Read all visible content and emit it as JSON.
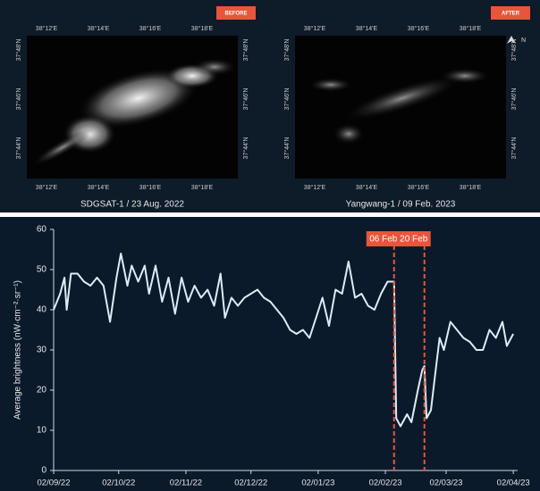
{
  "images": [
    {
      "badge": "BEFORE",
      "caption": "SDGSAT-1 / 23 Aug. 2022"
    },
    {
      "badge": "AFTER",
      "caption": "Yangwang-1 / 09 Feb. 2023"
    }
  ],
  "lon_labels": [
    "38°12'E",
    "38°14'E",
    "38°16'E",
    "38°18'E"
  ],
  "lat_labels": [
    "37°48'N",
    "37°46'N",
    "37°44'N"
  ],
  "north": "N",
  "chart_data": {
    "type": "line",
    "ylabel": "Average brightness  (nW·cm⁻²·sr⁻¹)",
    "ylim": [
      0,
      60
    ],
    "yticks": [
      0,
      10,
      20,
      30,
      40,
      50,
      60
    ],
    "xlim": [
      "2022-09-02",
      "2023-04-04"
    ],
    "xticks": [
      {
        "value": "2022-09-02",
        "label": "02/09/22"
      },
      {
        "value": "2022-10-02",
        "label": "02/10/22"
      },
      {
        "value": "2022-11-02",
        "label": "02/11/22"
      },
      {
        "value": "2022-12-02",
        "label": "02/12/22"
      },
      {
        "value": "2023-01-02",
        "label": "02/01/23"
      },
      {
        "value": "2023-02-02",
        "label": "02/02/23"
      },
      {
        "value": "2023-03-02",
        "label": "02/03/23"
      },
      {
        "value": "2023-04-02",
        "label": "02/04/23"
      }
    ],
    "x": [
      "2022-09-02",
      "2022-09-05",
      "2022-09-07",
      "2022-09-08",
      "2022-09-10",
      "2022-09-13",
      "2022-09-16",
      "2022-09-19",
      "2022-09-22",
      "2022-09-25",
      "2022-09-28",
      "2022-10-01",
      "2022-10-03",
      "2022-10-06",
      "2022-10-08",
      "2022-10-11",
      "2022-10-14",
      "2022-10-16",
      "2022-10-19",
      "2022-10-22",
      "2022-10-25",
      "2022-10-28",
      "2022-10-31",
      "2022-11-03",
      "2022-11-06",
      "2022-11-09",
      "2022-11-12",
      "2022-11-15",
      "2022-11-18",
      "2022-11-20",
      "2022-11-23",
      "2022-11-26",
      "2022-11-29",
      "2022-12-02",
      "2022-12-05",
      "2022-12-08",
      "2022-12-11",
      "2022-12-14",
      "2022-12-17",
      "2022-12-20",
      "2022-12-23",
      "2022-12-26",
      "2022-12-29",
      "2023-01-01",
      "2023-01-04",
      "2023-01-07",
      "2023-01-10",
      "2023-01-13",
      "2023-01-16",
      "2023-01-19",
      "2023-01-22",
      "2023-01-25",
      "2023-01-28",
      "2023-01-31",
      "2023-02-03",
      "2023-02-06",
      "2023-02-07",
      "2023-02-09",
      "2023-02-12",
      "2023-02-14",
      "2023-02-17",
      "2023-02-19",
      "2023-02-20",
      "2023-02-21",
      "2023-02-23",
      "2023-02-25",
      "2023-02-27",
      "2023-03-01",
      "2023-03-04",
      "2023-03-07",
      "2023-03-10",
      "2023-03-13",
      "2023-03-16",
      "2023-03-19",
      "2023-03-22",
      "2023-03-25",
      "2023-03-28",
      "2023-03-30",
      "2023-04-02"
    ],
    "series": [
      {
        "color": "#dcecf7",
        "values": [
          40,
          44,
          48,
          40,
          49,
          49,
          47,
          46,
          48,
          46,
          37,
          48,
          54,
          46,
          51,
          47,
          51,
          44,
          51,
          42,
          48,
          39,
          48,
          42,
          46,
          43,
          45,
          41,
          49,
          38,
          43,
          41,
          43,
          44,
          45,
          43,
          42,
          40,
          38,
          35,
          34,
          35,
          33,
          38,
          43,
          36,
          45,
          44,
          52,
          43,
          44,
          41,
          40,
          44,
          47,
          47,
          13,
          11,
          14,
          12,
          20,
          25,
          26,
          13,
          15,
          24,
          33,
          30,
          37,
          35,
          33,
          32,
          30,
          30,
          35,
          33,
          37,
          31,
          34
        ]
      }
    ],
    "vlines": [
      {
        "x": "2023-02-06",
        "label": "06 Feb"
      },
      {
        "x": "2023-02-20",
        "label": "20 Feb"
      }
    ],
    "vline_color": "#e8553a"
  }
}
